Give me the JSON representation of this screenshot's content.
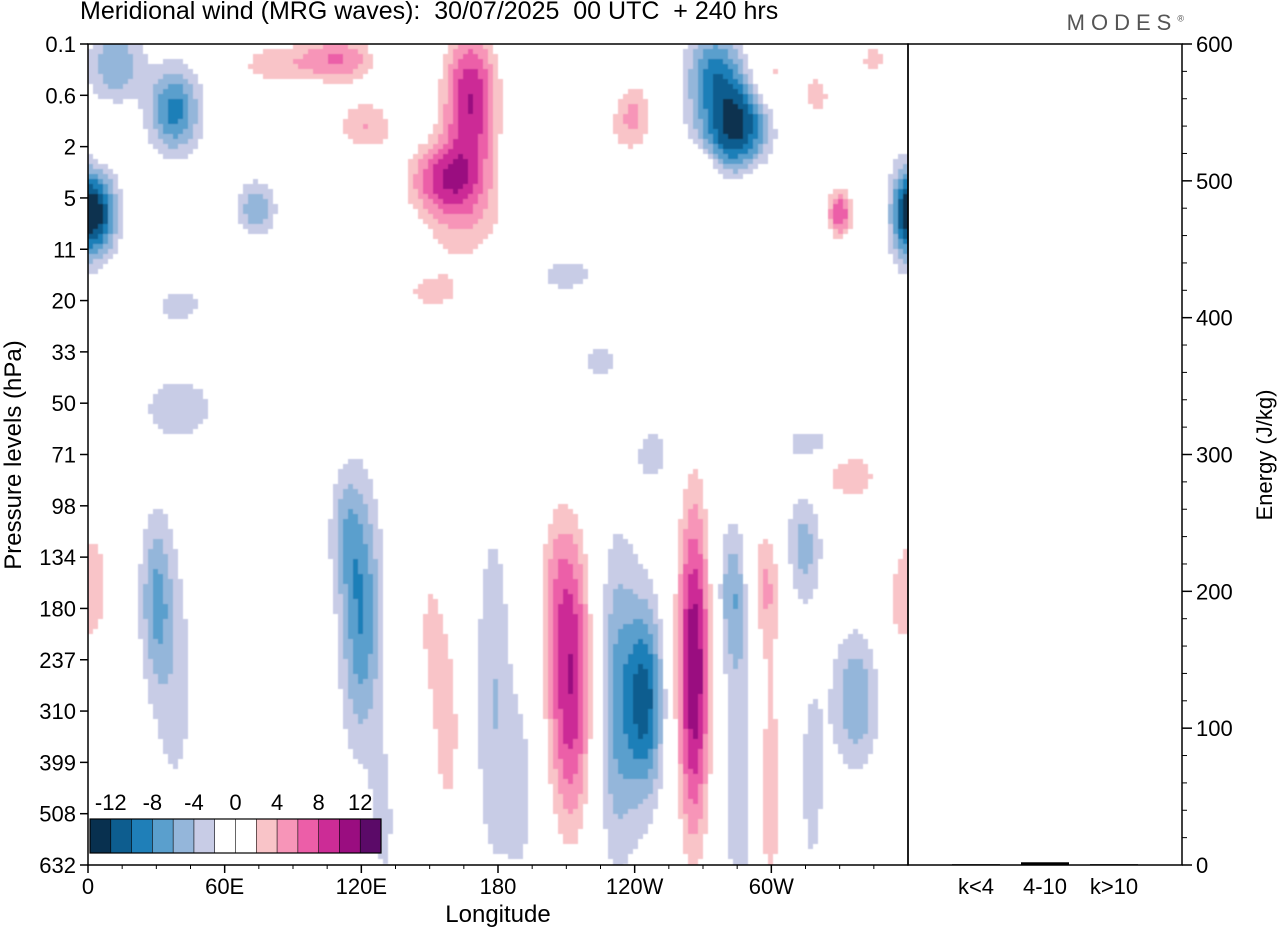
{
  "header": {
    "title": "Meridional wind (MRG waves):  30/07/2025  00 UTC  + 240 hrs",
    "brand": "MODES",
    "brand_mark": "®"
  },
  "chart_data": [
    {
      "type": "heatmap",
      "title": "Meridional wind (MRG waves)",
      "xlabel": "Longitude",
      "ylabel": "Pressure levels (hPa)",
      "x_ticks": [
        "0",
        "60E",
        "120E",
        "180",
        "120W",
        "60W"
      ],
      "x_tick_degrees": [
        0,
        60,
        120,
        180,
        240,
        300
      ],
      "xlim": [
        0,
        360
      ],
      "y_ticks": [
        "0.1",
        "0.6",
        "2",
        "5",
        "11",
        "20",
        "33",
        "50",
        "71",
        "98",
        "134",
        "180",
        "237",
        "310",
        "399",
        "508",
        "632"
      ],
      "colorbar_levels": [
        -14,
        -12,
        -10,
        -8,
        -6,
        -4,
        -2,
        2,
        4,
        6,
        8,
        10,
        12,
        14
      ],
      "colorbar_labels": [
        "-12",
        "-8",
        "-4",
        "0",
        "4",
        "8",
        "12"
      ],
      "colorbar_colors": [
        "#08304f",
        "#0d5d8f",
        "#1f7fb8",
        "#5a9fcd",
        "#94b6da",
        "#c8cce6",
        "#ffffff",
        "#ffffff",
        "#f9c4c8",
        "#f795b8",
        "#ec5ea8",
        "#cc2c96",
        "#9a0d80",
        "#5b0a68"
      ],
      "features": [
        {
          "lon": 12,
          "level": 0.4,
          "v": -6,
          "w": 12,
          "h": 0.7
        },
        {
          "lon": 38,
          "level": 1.3,
          "v": -9,
          "w": 11,
          "h": 0.8
        },
        {
          "lon": 5,
          "level": 3.3,
          "v": -11,
          "w": 8,
          "h": 0.8
        },
        {
          "lon": 74,
          "level": 3.2,
          "v": -6,
          "w": 8,
          "h": 0.5
        },
        {
          "lon": 10,
          "level": 1.9,
          "v": 4,
          "w": 6,
          "h": 0.4
        },
        {
          "lon": 80,
          "level": 0.4,
          "v": 5,
          "w": 18,
          "h": 0.5
        },
        {
          "lon": 110,
          "level": 0.3,
          "v": 8,
          "w": 18,
          "h": 0.5
        },
        {
          "lon": 122,
          "level": 1.6,
          "v": 6,
          "w": 15,
          "h": 0.6
        },
        {
          "lon": 168,
          "level": 1.1,
          "v": 12,
          "w": 13,
          "h": 1.5
        },
        {
          "lon": 155,
          "level": 2.6,
          "v": 8,
          "w": 16,
          "h": 0.7
        },
        {
          "lon": 165,
          "level": 3.4,
          "v": 5,
          "w": 22,
          "h": 1.1
        },
        {
          "lon": 150,
          "level": 4.9,
          "v": 4,
          "w": 22,
          "h": 0.6
        },
        {
          "lon": 238,
          "level": 1.7,
          "v": 5,
          "w": 12,
          "h": 0.6
        },
        {
          "lon": 240,
          "level": 1.1,
          "v": 4,
          "w": 9,
          "h": 0.5
        },
        {
          "lon": 275,
          "level": 0.7,
          "v": -9,
          "w": 12,
          "h": 1.0
        },
        {
          "lon": 288,
          "level": 1.4,
          "v": -9,
          "w": 12,
          "h": 0.8
        },
        {
          "lon": 280,
          "level": 2.0,
          "v": -6,
          "w": 14,
          "h": 0.6
        },
        {
          "lon": 300,
          "level": 0.6,
          "v": 5,
          "w": 10,
          "h": 0.7
        },
        {
          "lon": 320,
          "level": 1.0,
          "v": 5,
          "w": 8,
          "h": 0.6
        },
        {
          "lon": 345,
          "level": 0.3,
          "v": 5,
          "w": 8,
          "h": 0.5
        },
        {
          "lon": 330,
          "level": 3.3,
          "v": 10,
          "w": 6,
          "h": 0.5
        },
        {
          "lon": 358,
          "level": 3.3,
          "v": -8,
          "w": 6,
          "h": 0.9
        },
        {
          "lon": 270,
          "level": 2.4,
          "v": 4,
          "w": 8,
          "h": 0.5
        },
        {
          "lon": 295,
          "level": 2.9,
          "v": 4,
          "w": 7,
          "h": 0.4
        },
        {
          "lon": 290,
          "level": 5.0,
          "v": 4,
          "w": 14,
          "h": 0.6
        },
        {
          "lon": 40,
          "level": 5.1,
          "v": -3,
          "w": 12,
          "h": 0.4
        },
        {
          "lon": 40,
          "level": 7.1,
          "v": -3,
          "w": 20,
          "h": 0.8
        },
        {
          "lon": 210,
          "level": 4.5,
          "v": -3,
          "w": 14,
          "h": 0.4
        },
        {
          "lon": 225,
          "level": 6.2,
          "v": -3,
          "w": 9,
          "h": 0.4
        },
        {
          "lon": 150,
          "level": 6.5,
          "v": 3,
          "w": 7,
          "h": 0.5
        },
        {
          "lon": 335,
          "level": 8.4,
          "v": 6,
          "w": 14,
          "h": 0.6
        },
        {
          "lon": 320,
          "level": 7.8,
          "v": -3,
          "w": 18,
          "h": 0.4
        },
        {
          "lon": 3,
          "level": 10.5,
          "v": 5,
          "w": 8,
          "h": 1.6
        },
        {
          "lon": 30,
          "level": 10.8,
          "v": -6,
          "w": 7,
          "h": 1.6
        },
        {
          "lon": 38,
          "level": 12.5,
          "v": -3,
          "w": 10,
          "h": 2.5
        },
        {
          "lon": 60,
          "level": 10.0,
          "v": 3,
          "w": 8,
          "h": 1.1
        },
        {
          "lon": 100,
          "level": 12.5,
          "v": 3,
          "w": 5,
          "h": 1.5
        },
        {
          "lon": 120,
          "level": 11.2,
          "v": -8,
          "w": 9,
          "h": 2.4
        },
        {
          "lon": 113,
          "level": 9.5,
          "v": -4,
          "w": 7,
          "h": 1.2
        },
        {
          "lon": 150,
          "level": 11.3,
          "v": 4,
          "w": 8,
          "h": 2.0
        },
        {
          "lon": 158,
          "level": 13.5,
          "v": 5,
          "w": 7,
          "h": 2.2
        },
        {
          "lon": 178,
          "level": 12.7,
          "v": -4,
          "w": 8,
          "h": 3.5
        },
        {
          "lon": 190,
          "level": 14.5,
          "v": -3,
          "w": 7,
          "h": 2.0
        },
        {
          "lon": 212,
          "level": 12.5,
          "v": 12,
          "w": 11,
          "h": 3.0
        },
        {
          "lon": 205,
          "level": 10.3,
          "v": 3,
          "w": 9,
          "h": 1.6
        },
        {
          "lon": 232,
          "level": 12.8,
          "v": -7,
          "w": 10,
          "h": 3.0
        },
        {
          "lon": 245,
          "level": 12.8,
          "v": -10,
          "w": 8,
          "h": 1.8
        },
        {
          "lon": 266,
          "level": 12.2,
          "v": 14,
          "w": 8,
          "h": 3.5
        },
        {
          "lon": 248,
          "level": 8.0,
          "v": -3,
          "w": 8,
          "h": 0.6
        },
        {
          "lon": 283,
          "level": 10.7,
          "v": -5,
          "w": 7,
          "h": 1.3
        },
        {
          "lon": 287,
          "level": 13.8,
          "v": -4,
          "w": 9,
          "h": 3.5
        },
        {
          "lon": 297,
          "level": 10.5,
          "v": 6,
          "w": 8,
          "h": 1.4
        },
        {
          "lon": 299,
          "level": 14.5,
          "v": 6,
          "w": 7,
          "h": 3.0
        },
        {
          "lon": 314,
          "level": 9.8,
          "v": -5,
          "w": 8,
          "h": 1.1
        },
        {
          "lon": 318,
          "level": 14.3,
          "v": -3,
          "w": 6,
          "h": 2.2
        },
        {
          "lon": 337,
          "level": 12.8,
          "v": -6,
          "w": 10,
          "h": 1.3
        },
        {
          "lon": 354,
          "level": 11.0,
          "v": 3,
          "w": 6,
          "h": 1.4
        },
        {
          "lon": 10,
          "level": 14.5,
          "v": 3,
          "w": 8,
          "h": 2.0
        },
        {
          "lon": 75,
          "level": 13.5,
          "v": 3,
          "w": 6,
          "h": 1.0
        },
        {
          "lon": 88,
          "level": 15.3,
          "v": 3,
          "w": 6,
          "h": 1.2
        },
        {
          "lon": 130,
          "level": 15.0,
          "v": -3,
          "w": 6,
          "h": 1.5
        },
        {
          "lon": 140,
          "level": 14.0,
          "v": 3,
          "w": 6,
          "h": 1.5
        }
      ]
    },
    {
      "type": "bar",
      "ylabel": "Energy (J/kg)",
      "categories": [
        "k<4",
        "4-10",
        "k>10"
      ],
      "values": [
        0,
        2,
        0
      ],
      "ylim": [
        0,
        600
      ],
      "y_ticks": [
        0,
        100,
        200,
        300,
        400,
        500,
        600
      ]
    }
  ]
}
